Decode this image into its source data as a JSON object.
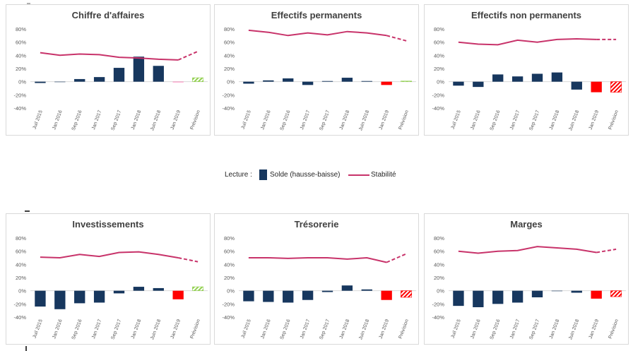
{
  "categories": [
    "Juil 2015",
    "Jan 2016",
    "Sep 2016",
    "Jan 2017",
    "Sep 2017",
    "Jan 2018",
    "Juin 2018",
    "Jan 2019",
    "Prévision"
  ],
  "y_ticks": [
    "80%",
    "60%",
    "40%",
    "20%",
    "0%",
    "-20%",
    "-40%"
  ],
  "colors": {
    "bar": "#17375e",
    "line": "#c8336a",
    "neg_forecast": "#ff0000",
    "pos_forecast": "#92d050"
  },
  "legend": {
    "lecture": "Lecture :",
    "bars": "Solde (hausse-baisse)",
    "line": "Stabilité"
  },
  "chart_data": [
    {
      "type": "bar",
      "title": "Chiffre d'affaires",
      "ylim": [
        -40,
        80
      ],
      "categories": [
        "Juil 2015",
        "Jan 2016",
        "Sep 2016",
        "Jan 2017",
        "Sep 2017",
        "Jan 2018",
        "Juin 2018",
        "Jan 2019",
        "Prévision"
      ],
      "series": [
        {
          "values": [
            -2,
            0,
            4,
            7,
            21,
            38,
            24,
            -1,
            6
          ]
        },
        {
          "values": [
            44,
            40,
            42,
            41,
            37,
            36,
            34,
            33,
            46
          ]
        }
      ]
    },
    {
      "type": "bar",
      "title": "Effectifs permanents",
      "ylim": [
        -40,
        80
      ],
      "categories": [
        "Juil 2015",
        "Jan 2016",
        "Sep 2016",
        "Jan 2017",
        "Sep 2017",
        "Jan 2018",
        "Juin 2018",
        "Jan 2019",
        "Prévision"
      ],
      "series": [
        {
          "values": [
            -3,
            2,
            5,
            -5,
            1,
            6,
            1,
            -5,
            1
          ]
        },
        {
          "values": [
            78,
            75,
            70,
            74,
            71,
            76,
            74,
            70,
            62
          ]
        }
      ]
    },
    {
      "type": "bar",
      "title": "Effectifs non permanents",
      "ylim": [
        -40,
        80
      ],
      "categories": [
        "Juil 2015",
        "Jan 2016",
        "Sep 2016",
        "Jan 2017",
        "Sep 2017",
        "Jan 2018",
        "Juin 2018",
        "Jan 2019",
        "Prévision"
      ],
      "series": [
        {
          "values": [
            -6,
            -8,
            11,
            8,
            12,
            14,
            -12,
            -16,
            -16
          ]
        },
        {
          "values": [
            60,
            57,
            56,
            63,
            60,
            64,
            65,
            64,
            64
          ]
        }
      ]
    },
    {
      "type": "bar",
      "title": "Investissements",
      "ylim": [
        -40,
        80
      ],
      "categories": [
        "Juil 2015",
        "Jan 2016",
        "Sep 2016",
        "Jan 2017",
        "Sep 2017",
        "Jan 2018",
        "Juin 2018",
        "Jan 2019",
        "Prévision"
      ],
      "series": [
        {
          "values": [
            -24,
            -28,
            -19,
            -18,
            -4,
            6,
            4,
            -13,
            6
          ]
        },
        {
          "values": [
            51,
            50,
            55,
            52,
            58,
            59,
            55,
            50,
            44
          ]
        }
      ]
    },
    {
      "type": "bar",
      "title": "Trésorerie",
      "ylim": [
        -40,
        80
      ],
      "categories": [
        "Juil 2015",
        "Jan 2016",
        "Sep 2016",
        "Jan 2017",
        "Sep 2017",
        "Jan 2018",
        "Juin 2018",
        "Jan 2019",
        "Prévision"
      ],
      "series": [
        {
          "values": [
            -16,
            -17,
            -18,
            -14,
            -2,
            8,
            2,
            -14,
            -10
          ]
        },
        {
          "values": [
            50,
            50,
            49,
            50,
            50,
            48,
            50,
            43,
            56
          ]
        }
      ]
    },
    {
      "type": "bar",
      "title": "Marges",
      "ylim": [
        -40,
        80
      ],
      "categories": [
        "Juil 2015",
        "Jan 2016",
        "Sep 2016",
        "Jan 2017",
        "Sep 2017",
        "Jan 2018",
        "Juin 2018",
        "Jan 2019",
        "Prévision"
      ],
      "series": [
        {
          "values": [
            -23,
            -25,
            -20,
            -18,
            -10,
            0,
            -3,
            -12,
            -9
          ]
        },
        {
          "values": [
            60,
            57,
            60,
            61,
            67,
            65,
            63,
            58,
            63
          ]
        }
      ]
    }
  ]
}
